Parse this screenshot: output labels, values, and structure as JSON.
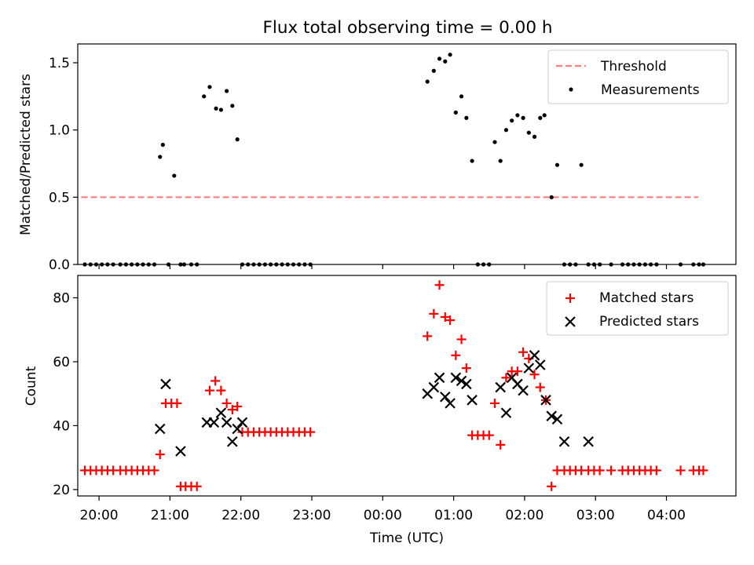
{
  "figure": {
    "title": "Flux total observing time = 0.00 h",
    "xlabel": "Time (UTC)",
    "xticks": [
      "20:00",
      "21:00",
      "22:00",
      "23:00",
      "00:00",
      "01:00",
      "02:00",
      "03:00",
      "04:00"
    ]
  },
  "chart_data": [
    {
      "type": "scatter",
      "panel": "top",
      "ylabel": "Matched/Predicted stars",
      "xlim": [
        -4.3,
        4.98
      ],
      "ylim": [
        0,
        1.64
      ],
      "yticks": [
        "0.0",
        "0.5",
        "1.0",
        "1.5"
      ],
      "x_unit": "hours relative to 00:00 UTC",
      "legend_position": "upper right",
      "series": [
        {
          "name": "Threshold",
          "style": "dashed-line",
          "color": "#ff7f7f",
          "x": [
            -4.25,
            4.45
          ],
          "y": [
            0.5,
            0.5
          ]
        },
        {
          "name": "Measurements",
          "style": "dot",
          "color": "#000000",
          "x": [
            -4.2,
            -4.12,
            -4.04,
            -3.96,
            -3.88,
            -3.8,
            -3.7,
            -3.62,
            -3.54,
            -3.46,
            -3.38,
            -3.3,
            -3.22,
            -3.14,
            -3.1,
            -3.02,
            -2.94,
            -2.85,
            -2.8,
            -2.7,
            -2.62,
            -2.52,
            -2.44,
            -2.35,
            -2.28,
            -2.2,
            -2.12,
            -2.05,
            -1.98,
            -1.9,
            -1.82,
            -1.74,
            -1.66,
            -1.58,
            -1.5,
            -1.42,
            -1.34,
            -1.26,
            -1.18,
            -1.1,
            -1.02,
            0.63,
            0.72,
            0.8,
            0.88,
            0.95,
            1.03,
            1.11,
            1.18,
            1.26,
            1.34,
            1.42,
            1.5,
            1.58,
            1.66,
            1.74,
            1.82,
            1.9,
            1.98,
            2.06,
            2.14,
            2.22,
            2.28,
            2.38,
            2.46,
            2.56,
            2.64,
            2.72,
            2.8,
            2.9,
            2.98,
            3.06,
            3.22,
            3.38,
            3.46,
            3.54,
            3.62,
            3.7,
            3.78,
            3.86,
            4.2,
            4.38,
            4.46,
            4.52
          ],
          "y": [
            0,
            0,
            0,
            0,
            0,
            0,
            0,
            0,
            0,
            0,
            0,
            0,
            0,
            0.8,
            0.89,
            0,
            0.66,
            0,
            0,
            0,
            0,
            1.25,
            1.32,
            1.16,
            1.15,
            1.29,
            1.18,
            0.93,
            0,
            0,
            0,
            0,
            0,
            0,
            0,
            0,
            0,
            0,
            0,
            0,
            0,
            1.36,
            1.44,
            1.53,
            1.51,
            1.56,
            1.13,
            1.25,
            1.09,
            0.77,
            0,
            0,
            0,
            0.91,
            0.77,
            1.0,
            1.07,
            1.11,
            1.09,
            0.98,
            0.95,
            1.09,
            1.11,
            0.5,
            0.74,
            0,
            0,
            0,
            0.74,
            0,
            0,
            0,
            0,
            0,
            0,
            0,
            0,
            0,
            0,
            0,
            0,
            0,
            0,
            0
          ]
        }
      ]
    },
    {
      "type": "scatter",
      "panel": "bottom",
      "ylabel": "Count",
      "xlim": [
        -4.3,
        4.98
      ],
      "ylim": [
        18,
        87
      ],
      "yticks": [
        "20",
        "40",
        "60",
        "80"
      ],
      "x_unit": "hours relative to 00:00 UTC",
      "legend_position": "upper right",
      "series": [
        {
          "name": "Matched stars",
          "marker": "plus",
          "color": "#ff0000",
          "x": [
            -4.2,
            -4.12,
            -4.04,
            -3.96,
            -3.88,
            -3.8,
            -3.7,
            -3.62,
            -3.54,
            -3.46,
            -3.38,
            -3.3,
            -3.22,
            -3.14,
            -3.06,
            -2.98,
            -2.9,
            -2.85,
            -2.78,
            -2.7,
            -2.62,
            -2.44,
            -2.36,
            -2.28,
            -2.2,
            -2.12,
            -2.05,
            -1.98,
            -1.9,
            -1.82,
            -1.74,
            -1.66,
            -1.58,
            -1.5,
            -1.42,
            -1.34,
            -1.26,
            -1.18,
            -1.1,
            -1.02,
            0.63,
            0.72,
            0.8,
            0.88,
            0.95,
            1.03,
            1.11,
            1.18,
            1.26,
            1.34,
            1.42,
            1.5,
            1.58,
            1.66,
            1.74,
            1.82,
            1.9,
            1.98,
            2.06,
            2.14,
            2.22,
            2.3,
            2.38,
            2.46,
            2.56,
            2.64,
            2.72,
            2.8,
            2.9,
            2.98,
            3.06,
            3.22,
            3.38,
            3.46,
            3.54,
            3.62,
            3.7,
            3.78,
            3.86,
            4.2,
            4.38,
            4.46,
            4.52
          ],
          "y": [
            26,
            26,
            26,
            26,
            26,
            26,
            26,
            26,
            26,
            26,
            26,
            26,
            26,
            31,
            47,
            47,
            47,
            21,
            21,
            21,
            21,
            51,
            54,
            51,
            47,
            45,
            46,
            38,
            38,
            38,
            38,
            38,
            38,
            38,
            38,
            38,
            38,
            38,
            38,
            38,
            68,
            75,
            84,
            74,
            73,
            62,
            67,
            58,
            37,
            37,
            37,
            37,
            47,
            34,
            55,
            57,
            57,
            63,
            61,
            56,
            52,
            48,
            21,
            26,
            26,
            26,
            26,
            26,
            26,
            26,
            26,
            26,
            26,
            26,
            26,
            26,
            26,
            26,
            26,
            26,
            26,
            26,
            26
          ]
        },
        {
          "name": "Predicted stars",
          "marker": "x",
          "color": "#000000",
          "x": [
            -3.14,
            -3.06,
            -2.85,
            -2.48,
            -2.38,
            -2.28,
            -2.2,
            -2.12,
            -2.05,
            -1.98,
            0.63,
            0.72,
            0.8,
            0.88,
            0.95,
            1.03,
            1.11,
            1.18,
            1.26,
            1.66,
            1.74,
            1.82,
            1.9,
            1.98,
            2.06,
            2.14,
            2.22,
            2.3,
            2.38,
            2.46,
            2.56,
            2.9
          ],
          "y": [
            39,
            53,
            32,
            41,
            41,
            44,
            41,
            35,
            39,
            41,
            50,
            52,
            55,
            49,
            47,
            55,
            54,
            53,
            48,
            52,
            44,
            55,
            53,
            51,
            58,
            62,
            59,
            48,
            43,
            42,
            35,
            35
          ]
        }
      ]
    }
  ]
}
